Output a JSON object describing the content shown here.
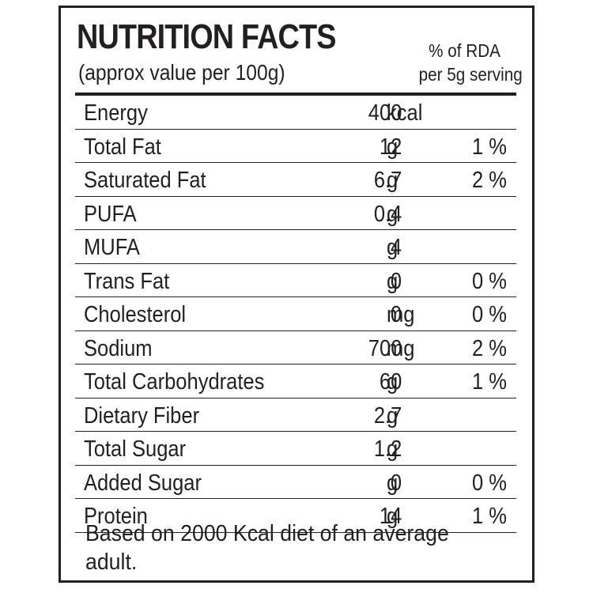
{
  "label": {
    "title": "NUTRITION FACTS",
    "subtitle": "(approx value per 100g)",
    "rda_header_line1": "% of RDA",
    "rda_header_line2": "per 5g serving",
    "rows": [
      {
        "name": "Energy",
        "value": "400",
        "unit": "kcal",
        "rda": ""
      },
      {
        "name": "Total Fat",
        "value": "12",
        "unit": "g",
        "rda": "1 %"
      },
      {
        "name": "Saturated Fat",
        "value": "6.7",
        "unit": "g",
        "rda": "2 %"
      },
      {
        "name": "PUFA",
        "value": "0.4",
        "unit": "g",
        "rda": ""
      },
      {
        "name": "MUFA",
        "value": "4",
        "unit": "g",
        "rda": ""
      },
      {
        "name": "Trans Fat",
        "value": "0",
        "unit": "g",
        "rda": "0 %"
      },
      {
        "name": "Cholesterol",
        "value": "0",
        "unit": "mg",
        "rda": "0 %"
      },
      {
        "name": "Sodium",
        "value": "700",
        "unit": "mg",
        "rda": "2 %"
      },
      {
        "name": "Total Carbohydrates",
        "value": "60",
        "unit": "g",
        "rda": "1 %"
      },
      {
        "name": "Dietary Fiber",
        "value": "2.7",
        "unit": "g",
        "rda": ""
      },
      {
        "name": "Total Sugar",
        "value": "1.2",
        "unit": "g",
        "rda": ""
      },
      {
        "name": "Added Sugar",
        "value": "0",
        "unit": "g",
        "rda": "0 %"
      },
      {
        "name": "Protein",
        "value": "14",
        "unit": "g",
        "rda": "1 %"
      }
    ],
    "footnote": "Based on 2000 Kcal diet of an average adult."
  },
  "colors": {
    "ink": "#231f20",
    "background": "#ffffff"
  }
}
